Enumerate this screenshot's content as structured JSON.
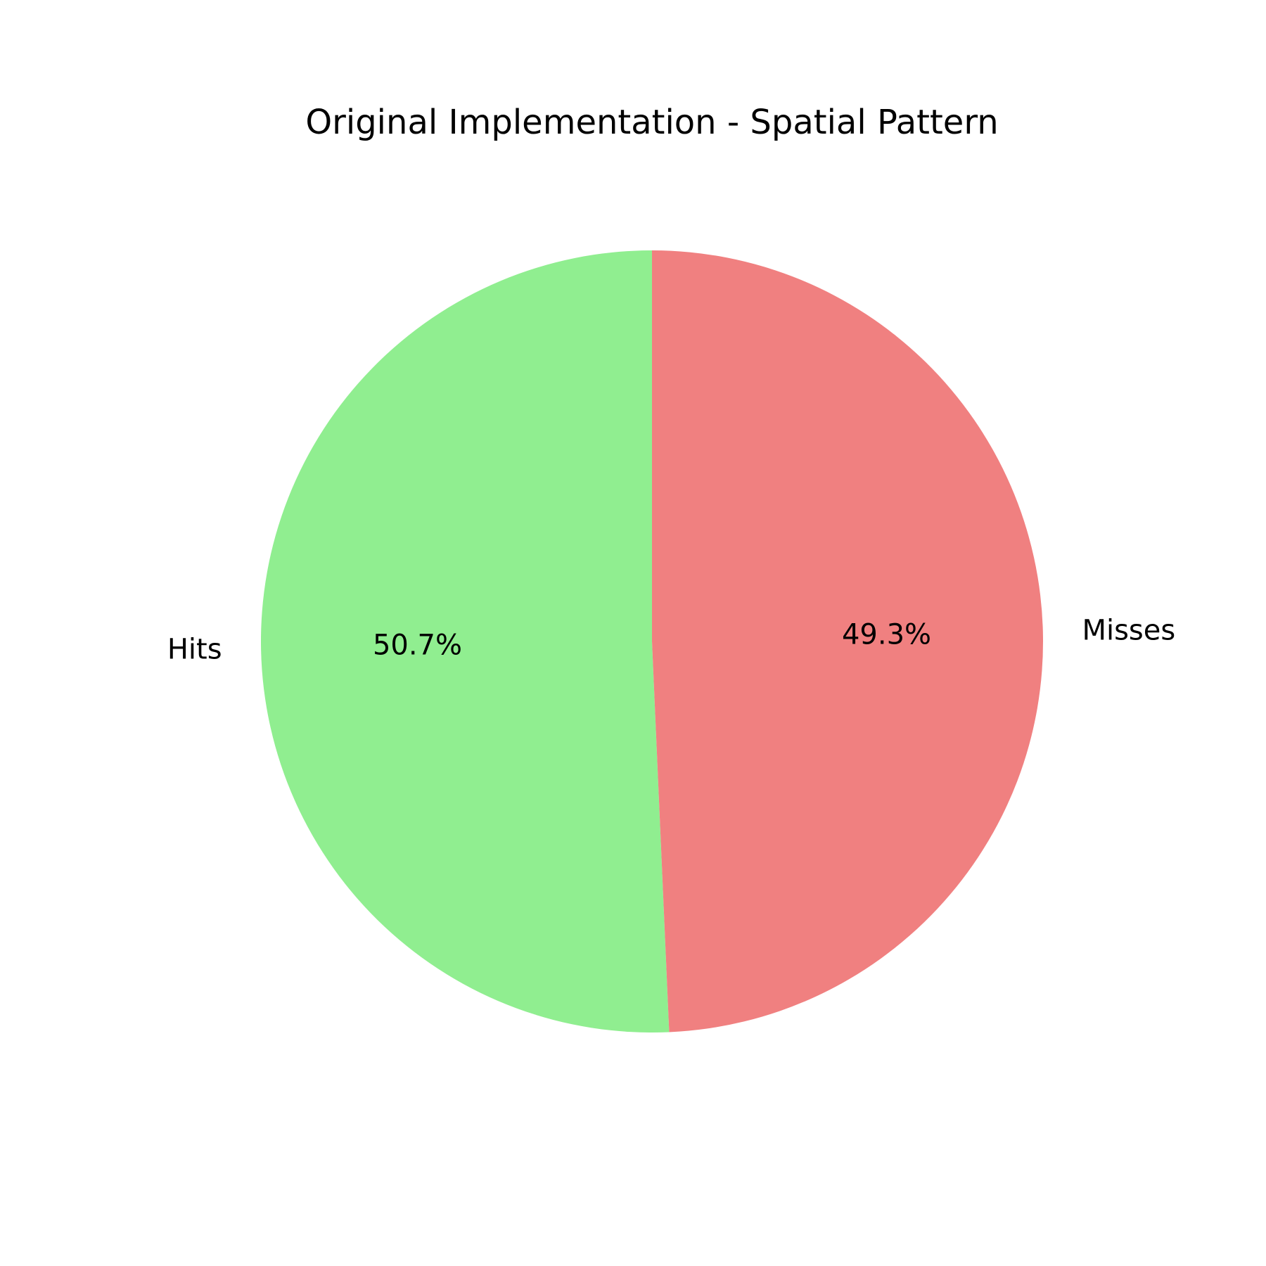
{
  "chart_data": {
    "type": "pie",
    "title": "Original Implementation - Spatial Pattern",
    "labels": [
      "Hits",
      "Misses"
    ],
    "values": [
      50.7,
      49.3
    ],
    "value_labels": [
      "50.7%",
      "49.3%"
    ],
    "colors": [
      "#90ee90",
      "#f08080"
    ],
    "start_angle_deg": 90,
    "direction": "counterclockwise",
    "legend": "none"
  }
}
